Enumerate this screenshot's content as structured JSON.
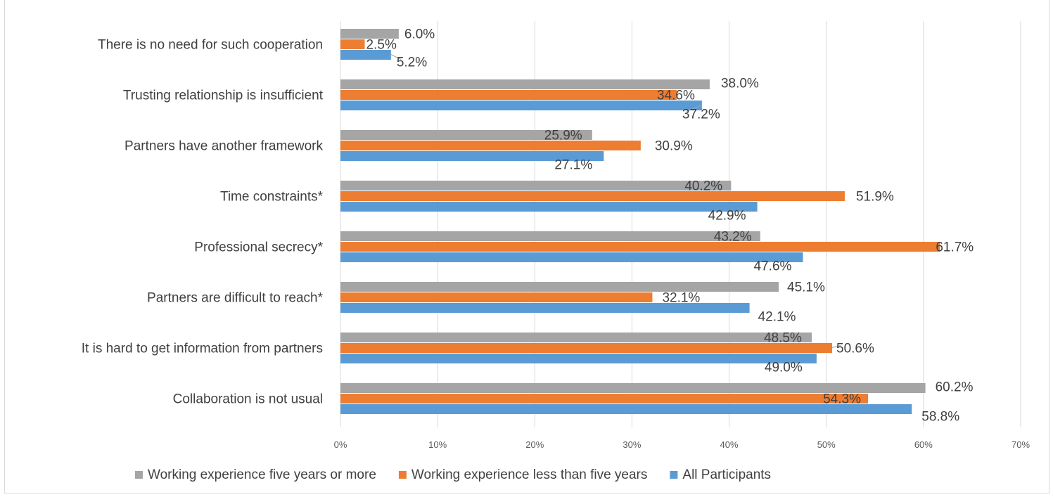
{
  "chart_data": {
    "type": "bar",
    "orientation": "horizontal",
    "categories": [
      "There is no need for such cooperation",
      "Trusting relationship is insufficient",
      "Partners have another framework",
      "Time constraints*",
      "Professional secrecy*",
      "Partners are difficult to reach*",
      "It is hard to get information from partners",
      "Collaboration is not usual"
    ],
    "series": [
      {
        "name": "Working experience five years or more",
        "color": "#a5a5a5",
        "values": [
          6.0,
          38.0,
          25.9,
          40.2,
          43.2,
          45.1,
          48.5,
          60.2
        ],
        "labels": [
          "6.0%",
          "38.0%",
          "25.9%",
          "40.2%",
          "43.2%",
          "45.1%",
          "48.5%",
          "60.2%"
        ]
      },
      {
        "name": "Working experience less than five years",
        "color": "#ed7d31",
        "values": [
          2.5,
          34.6,
          30.9,
          51.9,
          61.7,
          32.1,
          50.6,
          54.3
        ],
        "labels": [
          "2.5%",
          "34.6%",
          "30.9%",
          "51.9%",
          "61.7%",
          "32.1%",
          "50.6%",
          "54.3%"
        ]
      },
      {
        "name": "All Participants",
        "color": "#5b9bd5",
        "values": [
          5.2,
          37.2,
          27.1,
          42.9,
          47.6,
          42.1,
          49.0,
          58.8
        ],
        "labels": [
          "5.2%",
          "37.2%",
          "27.1%",
          "42.9%",
          "47.6%",
          "42.1%",
          "49.0%",
          "58.8%"
        ]
      }
    ],
    "xlim": [
      0,
      70
    ],
    "x_ticks": [
      "0%",
      "10%",
      "20%",
      "30%",
      "40%",
      "50%",
      "60%",
      "70%"
    ],
    "title": "",
    "xlabel": "",
    "ylabel": "",
    "grid": true,
    "legend_position": "bottom"
  }
}
